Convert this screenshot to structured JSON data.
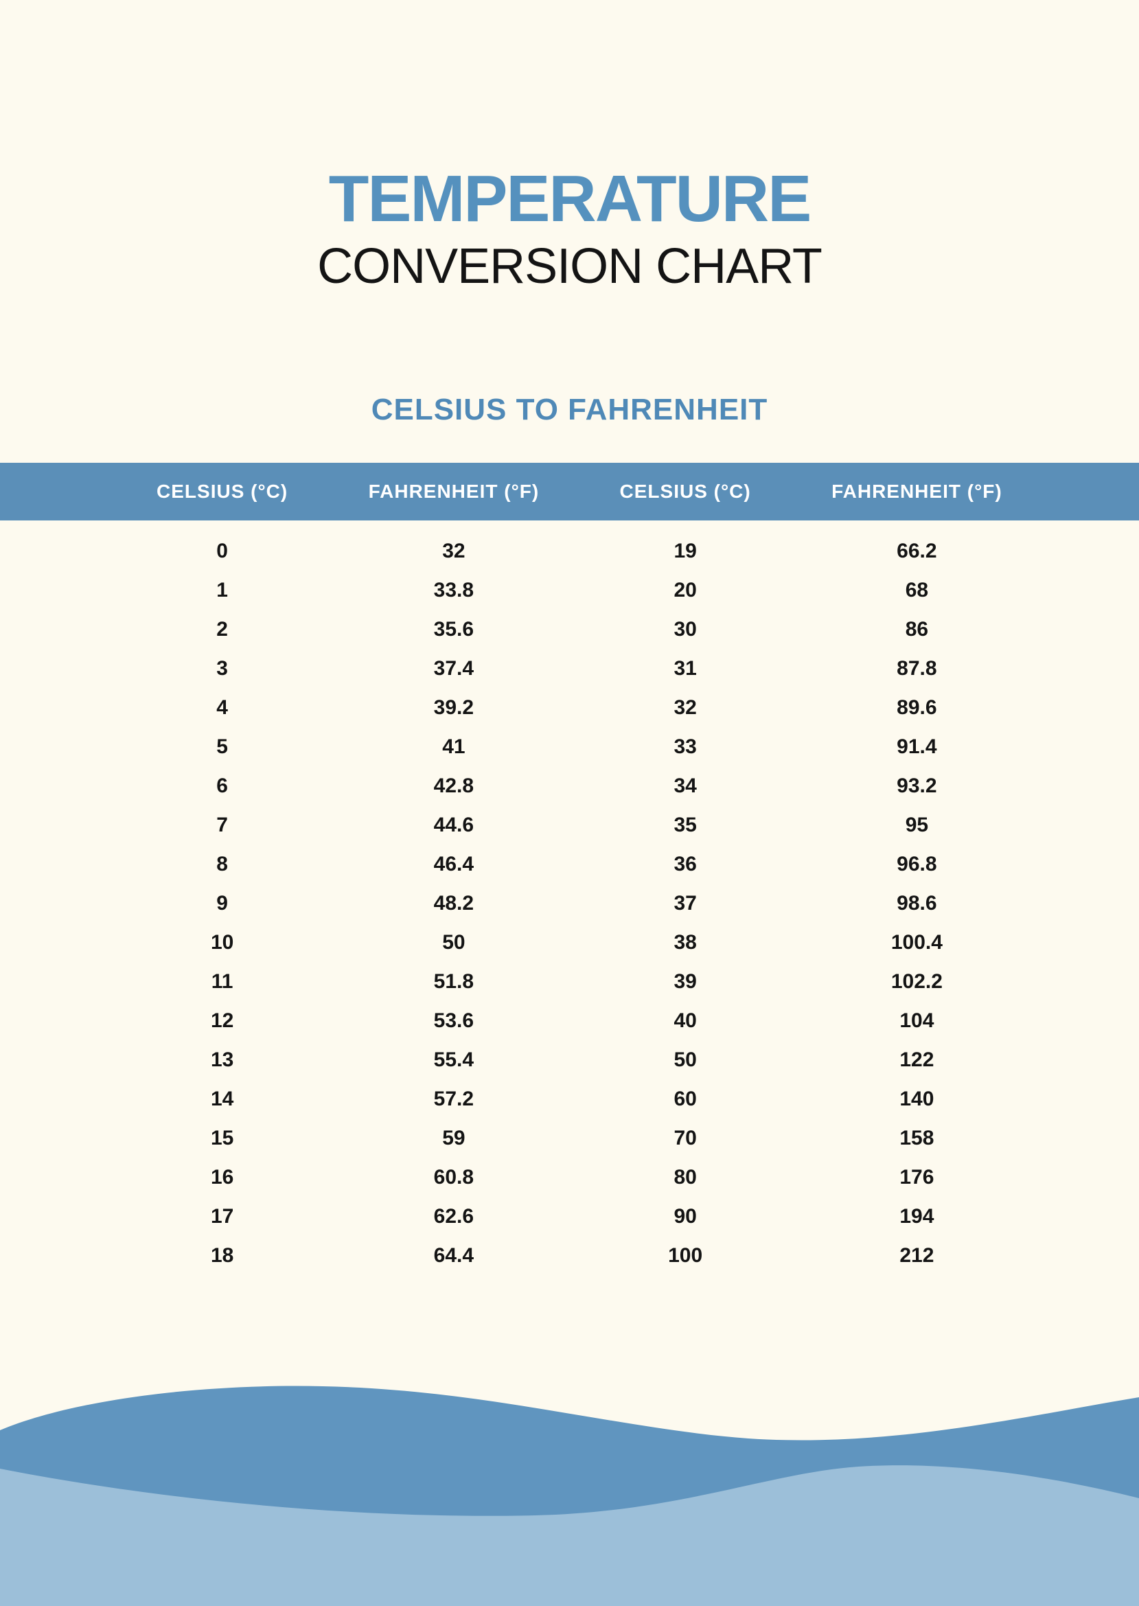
{
  "page": {
    "title_line1": "TEMPERATURE",
    "title_line2": "CONVERSION CHART",
    "subtitle": "CELSIUS TO FAHRENHEIT"
  },
  "colors": {
    "title_blue": "#5591be",
    "subtitle_blue": "#4f89b7",
    "header_bar_blue": "#5b8fb8",
    "dark_wave_blue": "#6095bf",
    "light_wave_blue": "#9cbfd9",
    "background_cream": "#fdfaef",
    "text_dark": "#141414"
  },
  "table": {
    "headers": [
      "CELSIUS (°C)",
      "FAHRENHEIT (°F)",
      "CELSIUS (°C)",
      "FAHRENHEIT (°F)"
    ],
    "rows": [
      [
        "0",
        "32",
        "19",
        "66.2"
      ],
      [
        "1",
        "33.8",
        "20",
        "68"
      ],
      [
        "2",
        "35.6",
        "30",
        "86"
      ],
      [
        "3",
        "37.4",
        "31",
        "87.8"
      ],
      [
        "4",
        "39.2",
        "32",
        "89.6"
      ],
      [
        "5",
        "41",
        "33",
        "91.4"
      ],
      [
        "6",
        "42.8",
        "34",
        "93.2"
      ],
      [
        "7",
        "44.6",
        "35",
        "95"
      ],
      [
        "8",
        "46.4",
        "36",
        "96.8"
      ],
      [
        "9",
        "48.2",
        "37",
        "98.6"
      ],
      [
        "10",
        "50",
        "38",
        "100.4"
      ],
      [
        "11",
        "51.8",
        "39",
        "102.2"
      ],
      [
        "12",
        "53.6",
        "40",
        "104"
      ],
      [
        "13",
        "55.4",
        "50",
        "122"
      ],
      [
        "14",
        "57.2",
        "60",
        "140"
      ],
      [
        "15",
        "59",
        "70",
        "158"
      ],
      [
        "16",
        "60.8",
        "80",
        "176"
      ],
      [
        "17",
        "62.6",
        "90",
        "194"
      ],
      [
        "18",
        "64.4",
        "100",
        "212"
      ]
    ]
  },
  "chart_data": {
    "type": "table",
    "title": "Celsius to Fahrenheit conversion",
    "columns": [
      "Celsius (°C)",
      "Fahrenheit (°F)"
    ],
    "pairs": [
      [
        0,
        32
      ],
      [
        1,
        33.8
      ],
      [
        2,
        35.6
      ],
      [
        3,
        37.4
      ],
      [
        4,
        39.2
      ],
      [
        5,
        41
      ],
      [
        6,
        42.8
      ],
      [
        7,
        44.6
      ],
      [
        8,
        46.4
      ],
      [
        9,
        48.2
      ],
      [
        10,
        50
      ],
      [
        11,
        51.8
      ],
      [
        12,
        53.6
      ],
      [
        13,
        55.4
      ],
      [
        14,
        57.2
      ],
      [
        15,
        59
      ],
      [
        16,
        60.8
      ],
      [
        17,
        62.6
      ],
      [
        18,
        64.4
      ],
      [
        19,
        66.2
      ],
      [
        20,
        68
      ],
      [
        30,
        86
      ],
      [
        31,
        87.8
      ],
      [
        32,
        89.6
      ],
      [
        33,
        91.4
      ],
      [
        34,
        93.2
      ],
      [
        35,
        95
      ],
      [
        36,
        96.8
      ],
      [
        37,
        98.6
      ],
      [
        38,
        100.4
      ],
      [
        39,
        102.2
      ],
      [
        40,
        104
      ],
      [
        50,
        122
      ],
      [
        60,
        140
      ],
      [
        70,
        158
      ],
      [
        80,
        176
      ],
      [
        90,
        194
      ],
      [
        100,
        212
      ]
    ]
  }
}
